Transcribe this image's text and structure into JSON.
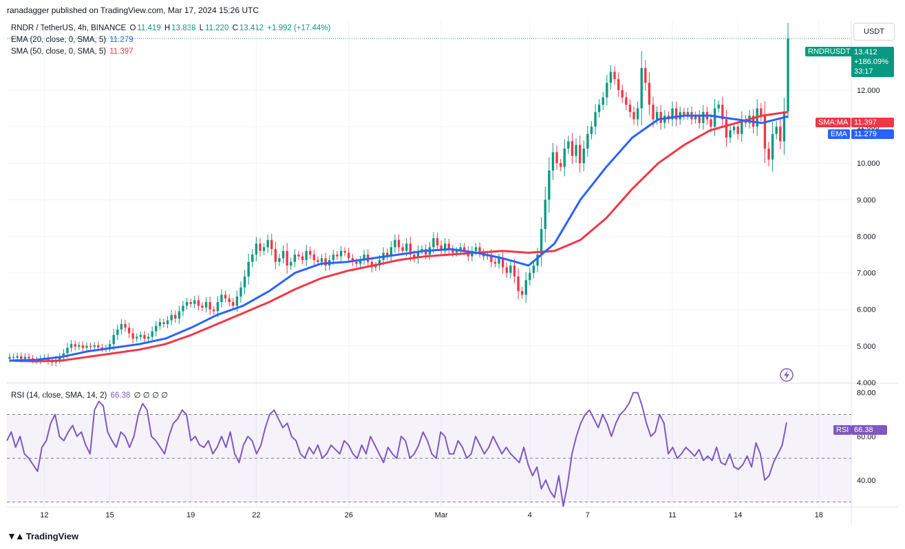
{
  "header": {
    "published_line": "ranadagger published on TradingView.com, Mar 17, 2024 15:26 UTC"
  },
  "legend": {
    "symbol": "RNDR / TetherUS, 4h, BINANCE",
    "open_label": "O",
    "open": "11.419",
    "high_label": "H",
    "high": "13.838",
    "low_label": "L",
    "low": "11.220",
    "close_label": "C",
    "close": "13.412",
    "change": "+1.992 (+17.44%)",
    "ema_label": "EMA (20, close, 0, SMA, 5)",
    "ema_value": "11.279",
    "sma_label": "SMA (50, close, 0, SMA, 5)",
    "sma_value": "11.397",
    "rsi_label": "RSI (14, close, SMA, 14, 2)",
    "rsi_value": "66.38",
    "rsi_extra": "∅ ∅ ∅ ∅"
  },
  "price_axis": {
    "currency_button": "USDT",
    "ticks": [
      "12.000",
      "11.000",
      "10.000",
      "9.000",
      "8.000",
      "7.000",
      "6.000",
      "5.000",
      "4.000"
    ],
    "symbol_tag": "RNDRUSDT",
    "last_price": "13.412",
    "last_change": "+186.09%",
    "countdown": "33:17",
    "sma_tag": "SMA:MA",
    "sma_tag_value": "11.397",
    "ema_tag": "EMA",
    "ema_tag_value": "11.279"
  },
  "rsi_axis": {
    "ticks": [
      "80.00",
      "60.00",
      "40.00"
    ],
    "rsi_tag": "RSI",
    "rsi_tag_value": "66.38"
  },
  "time_axis": {
    "labels": [
      "12",
      "15",
      "19",
      "22",
      "26",
      "Mar",
      "4",
      "7",
      "11",
      "14",
      "18"
    ]
  },
  "footer": {
    "brand": "TradingView"
  },
  "colors": {
    "up": "#089981",
    "down": "#f23645",
    "ema": "#2962ff",
    "sma": "#f23645",
    "rsi": "#7e57c2",
    "rsi_band": "#7e57c2"
  },
  "chart_data": [
    {
      "type": "candlestick",
      "title": "RNDR / TetherUS, 4h, BINANCE",
      "ylim": [
        4.0,
        13.9
      ],
      "x_labels": [
        "12",
        "15",
        "19",
        "22",
        "26",
        "Mar",
        "4",
        "7",
        "11",
        "14",
        "18"
      ],
      "x_label_index": [
        9,
        26,
        47,
        64,
        88,
        112,
        135,
        150,
        172,
        189,
        210
      ],
      "series": [
        {
          "name": "RNDR / TetherUS",
          "close": [
            4.7,
            4.68,
            4.72,
            4.65,
            4.7,
            4.66,
            4.62,
            4.6,
            4.65,
            4.68,
            4.6,
            4.55,
            4.62,
            4.7,
            4.8,
            4.95,
            5.05,
            4.98,
            5.02,
            4.95,
            5.0,
            4.98,
            5.02,
            4.96,
            4.92,
            4.95,
            5.05,
            5.3,
            5.45,
            5.6,
            5.5,
            5.35,
            5.2,
            5.25,
            5.3,
            5.2,
            5.25,
            5.4,
            5.55,
            5.65,
            5.6,
            5.7,
            5.85,
            5.75,
            5.95,
            6.1,
            6.2,
            6.15,
            6.25,
            6.1,
            6.05,
            6.2,
            6.0,
            5.95,
            6.2,
            6.4,
            6.3,
            6.2,
            6.1,
            6.35,
            6.6,
            6.9,
            7.3,
            7.5,
            7.8,
            7.6,
            7.7,
            7.9,
            7.65,
            7.3,
            7.4,
            7.6,
            7.2,
            7.3,
            7.5,
            7.45,
            7.35,
            7.6,
            7.5,
            7.35,
            7.3,
            7.4,
            7.2,
            7.35,
            7.5,
            7.45,
            7.6,
            7.55,
            7.4,
            7.3,
            7.25,
            7.35,
            7.5,
            7.3,
            7.15,
            7.2,
            7.35,
            7.55,
            7.45,
            7.7,
            7.9,
            7.7,
            7.6,
            7.8,
            7.5,
            7.4,
            7.6,
            7.65,
            7.5,
            7.7,
            7.95,
            7.75,
            7.6,
            7.8,
            7.65,
            7.55,
            7.6,
            7.7,
            7.6,
            7.45,
            7.6,
            7.7,
            7.55,
            7.45,
            7.5,
            7.3,
            7.25,
            7.4,
            7.15,
            7.0,
            7.2,
            6.9,
            6.5,
            6.4,
            6.8,
            7.0,
            7.2,
            7.5,
            8.2,
            9.0,
            9.8,
            10.3,
            10.0,
            9.9,
            10.4,
            10.6,
            10.2,
            10.5,
            10.0,
            10.4,
            10.8,
            11.0,
            11.4,
            11.6,
            11.8,
            12.2,
            12.5,
            12.3,
            12.0,
            11.8,
            11.6,
            11.4,
            11.2,
            11.5,
            12.6,
            12.2,
            11.6,
            11.2,
            11.4,
            11.1,
            11.3,
            11.2,
            11.5,
            11.2,
            11.4,
            11.3,
            11.4,
            11.2,
            11.3,
            11.1,
            11.4,
            11.2,
            11.0,
            11.5,
            11.6,
            11.2,
            10.7,
            10.9,
            11.0,
            10.8,
            11.2,
            11.1,
            11.3,
            11.0,
            11.5,
            11.3,
            10.4,
            10.1,
            10.8,
            11.0,
            10.6,
            11.42,
            13.41
          ],
          "open": [
            4.65,
            4.7,
            4.68,
            4.72,
            4.65,
            4.7,
            4.66,
            4.62,
            4.6,
            4.65,
            4.68,
            4.6,
            4.55,
            4.62,
            4.7,
            4.8,
            4.95,
            5.05,
            4.98,
            5.02,
            4.95,
            5.0,
            4.98,
            5.02,
            4.96,
            4.92,
            4.95,
            5.05,
            5.3,
            5.45,
            5.6,
            5.5,
            5.35,
            5.2,
            5.25,
            5.3,
            5.2,
            5.25,
            5.4,
            5.55,
            5.65,
            5.6,
            5.7,
            5.85,
            5.75,
            5.95,
            6.1,
            6.2,
            6.15,
            6.25,
            6.1,
            6.05,
            6.2,
            6.0,
            5.95,
            6.2,
            6.4,
            6.3,
            6.2,
            6.1,
            6.35,
            6.6,
            6.9,
            7.3,
            7.5,
            7.8,
            7.6,
            7.7,
            7.9,
            7.65,
            7.3,
            7.4,
            7.6,
            7.2,
            7.3,
            7.5,
            7.45,
            7.35,
            7.6,
            7.5,
            7.35,
            7.3,
            7.4,
            7.2,
            7.35,
            7.5,
            7.45,
            7.6,
            7.55,
            7.4,
            7.3,
            7.25,
            7.35,
            7.5,
            7.3,
            7.15,
            7.2,
            7.35,
            7.55,
            7.45,
            7.7,
            7.9,
            7.7,
            7.6,
            7.8,
            7.5,
            7.4,
            7.6,
            7.65,
            7.5,
            7.7,
            7.95,
            7.75,
            7.6,
            7.8,
            7.65,
            7.55,
            7.6,
            7.7,
            7.6,
            7.45,
            7.6,
            7.7,
            7.55,
            7.45,
            7.5,
            7.3,
            7.25,
            7.4,
            7.15,
            7.0,
            7.2,
            6.9,
            6.5,
            6.4,
            6.8,
            7.0,
            7.2,
            7.5,
            8.2,
            9.0,
            9.8,
            10.3,
            10.0,
            9.9,
            10.4,
            10.6,
            10.2,
            10.5,
            10.0,
            10.4,
            10.8,
            11.0,
            11.4,
            11.6,
            11.8,
            12.2,
            12.5,
            12.3,
            12.0,
            11.8,
            11.6,
            11.4,
            11.2,
            11.5,
            12.6,
            12.2,
            11.6,
            11.2,
            11.4,
            11.1,
            11.3,
            11.2,
            11.5,
            11.2,
            11.4,
            11.3,
            11.4,
            11.2,
            11.3,
            11.1,
            11.4,
            11.2,
            11.0,
            11.5,
            11.6,
            11.2,
            10.7,
            10.9,
            11.0,
            10.8,
            11.2,
            11.1,
            11.3,
            11.0,
            11.5,
            11.3,
            10.4,
            10.1,
            10.8,
            11.0,
            10.6,
            11.42
          ]
        },
        {
          "name": "EMA (20, close, 0, SMA, 5)",
          "approx_path_values": [
            4.6,
            4.62,
            4.7,
            4.85,
            4.95,
            5.05,
            5.2,
            5.5,
            5.85,
            6.1,
            6.5,
            7.0,
            7.25,
            7.3,
            7.4,
            7.5,
            7.6,
            7.65,
            7.55,
            7.4,
            7.2,
            7.8,
            9.0,
            9.9,
            10.7,
            11.2,
            11.3,
            11.3,
            11.2,
            11.1,
            11.28
          ]
        },
        {
          "name": "SMA (50, close, 0, SMA, 5)",
          "approx_path_values": [
            4.6,
            4.58,
            4.6,
            4.7,
            4.8,
            4.9,
            5.05,
            5.3,
            5.6,
            5.9,
            6.2,
            6.55,
            6.85,
            7.05,
            7.2,
            7.35,
            7.45,
            7.5,
            7.55,
            7.6,
            7.55,
            7.6,
            7.9,
            8.5,
            9.3,
            10.0,
            10.5,
            10.9,
            11.1,
            11.3,
            11.4
          ]
        }
      ]
    },
    {
      "type": "line",
      "title": "RSI (14, close, SMA, 14, 2)",
      "ylim": [
        28,
        84
      ],
      "overbought": 70,
      "middle": 50,
      "oversold": 30,
      "series": [
        {
          "name": "RSI (14, close, SMA, 14, 2)",
          "values": [
            58,
            62,
            55,
            60,
            52,
            50,
            47,
            44,
            55,
            58,
            66,
            70,
            60,
            58,
            62,
            65,
            60,
            62,
            56,
            52,
            72,
            76,
            74,
            62,
            58,
            55,
            62,
            60,
            55,
            60,
            70,
            75,
            72,
            60,
            58,
            55,
            52,
            60,
            66,
            68,
            72,
            70,
            58,
            60,
            56,
            55,
            58,
            52,
            55,
            60,
            55,
            62,
            52,
            48,
            56,
            60,
            58,
            52,
            56,
            64,
            70,
            72,
            68,
            64,
            66,
            60,
            58,
            52,
            50,
            55,
            52,
            56,
            50,
            52,
            56,
            54,
            52,
            58,
            56,
            52,
            50,
            56,
            52,
            60,
            56,
            52,
            48,
            55,
            52,
            50,
            60,
            58,
            50,
            52,
            56,
            62,
            58,
            52,
            50,
            62,
            60,
            52,
            52,
            58,
            55,
            50,
            52,
            60,
            56,
            52,
            55,
            60,
            56,
            52,
            55,
            52,
            50,
            48,
            55,
            47,
            42,
            46,
            36,
            40,
            35,
            32,
            42,
            28,
            38,
            52,
            60,
            66,
            70,
            72,
            68,
            64,
            70,
            66,
            60,
            66,
            70,
            72,
            75,
            80,
            80,
            74,
            66,
            60,
            62,
            70,
            66,
            52,
            55,
            50,
            52,
            55,
            53,
            51,
            54,
            49,
            51,
            49,
            55,
            48,
            47,
            52,
            46,
            45,
            47,
            51,
            46,
            57,
            52,
            40,
            42,
            48,
            52,
            56,
            66.38
          ]
        }
      ]
    }
  ]
}
